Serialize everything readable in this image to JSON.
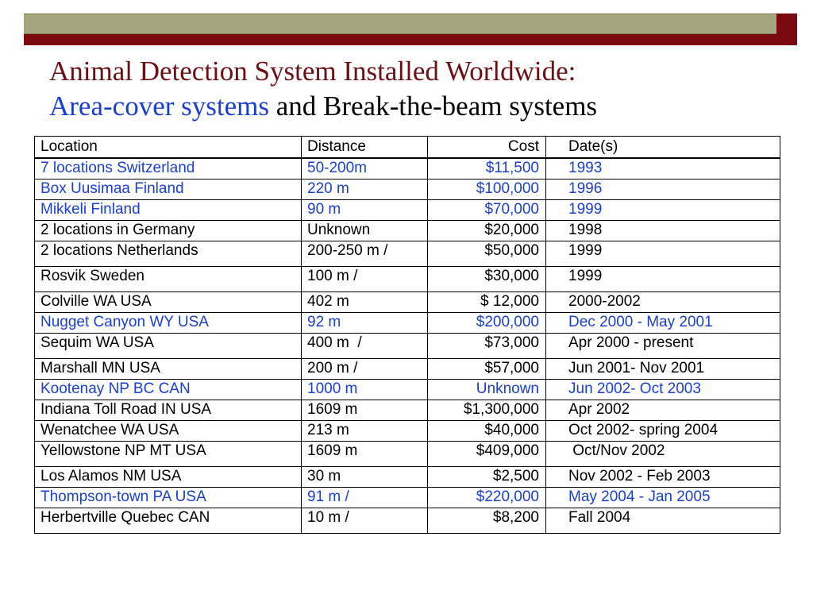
{
  "title": {
    "line1": "Animal Detection System Installed Worldwide:",
    "line2_blue": "Area-cover systems",
    "line2_black": " and Break-the-beam systems"
  },
  "colors": {
    "header_olive": "#a6a67e",
    "header_maroon": "#7a0a10",
    "title_maroon": "#6b0f15",
    "area_cover_blue": "#1a3fd0"
  },
  "table": {
    "headers": {
      "location": "Location",
      "distance": "Distance",
      "cost": "Cost",
      "dates": "Date(s)"
    },
    "rows": [
      {
        "location": "7 locations Switzerland",
        "distance": "50-200m",
        "cost": "$11,500",
        "dates": "1993",
        "color": "blue"
      },
      {
        "location": "Box Uusimaa Finland",
        "distance": "220 m",
        "cost": "$100,000",
        "dates": "1996",
        "color": "blue"
      },
      {
        "location": "Mikkeli Finland",
        "distance": "90 m",
        "cost": "$70,000",
        "dates": "1999",
        "color": "blue"
      },
      {
        "location": "2 locations in Germany",
        "distance": "Unknown",
        "cost": "$20,000",
        "dates": "1998",
        "color": "black"
      },
      {
        "location": "2 locations Netherlands",
        "distance": "200-250 m /",
        "cost": "$50,000",
        "dates": "1999",
        "color": "black",
        "tall": true
      },
      {
        "location": "Rosvik Sweden",
        "distance": "100 m /",
        "cost": "$30,000",
        "dates": "1999",
        "color": "black",
        "tall": true
      },
      {
        "location": "Colville WA USA",
        "distance": "402 m",
        "cost": "$ 12,000",
        "dates": "2000-2002",
        "color": "black"
      },
      {
        "location": "Nugget Canyon WY USA",
        "distance": "92 m",
        "cost": "$200,000",
        "dates": "Dec 2000 - May 2001",
        "color": "blue"
      },
      {
        "location": "Sequim WA USA",
        "distance": "400 m  /",
        "cost": "$73,000",
        "dates": "Apr 2000 - present",
        "color": "black",
        "tall": true
      },
      {
        "location": "Marshall MN USA",
        "distance": "200 m /",
        "cost": "$57,000",
        "dates": "Jun 2001- Nov 2001",
        "color": "black"
      },
      {
        "location": "Kootenay NP BC CAN",
        "distance": "1000 m",
        "cost": "Unknown",
        "dates": "Jun 2002- Oct 2003",
        "color": "blue"
      },
      {
        "location": "Indiana Toll Road IN USA",
        "distance": "1609 m",
        "cost": "$1,300,000",
        "dates": "Apr 2002",
        "color": "black"
      },
      {
        "location": "Wenatchee WA USA",
        "distance": "213 m",
        "cost": "$40,000",
        "dates": "Oct 2002- spring 2004",
        "color": "black"
      },
      {
        "location": "Yellowstone NP MT USA",
        "distance": "1609 m",
        "cost": "$409,000",
        "dates": " Oct/Nov 2002",
        "color": "black",
        "tall": true
      },
      {
        "location": "Los Alamos NM USA",
        "distance": "30 m",
        "cost": "$2,500",
        "dates": "Nov 2002 - Feb 2003",
        "color": "black"
      },
      {
        "location": "Thompson-town PA USA",
        "distance": "91 m /",
        "cost": "$220,000",
        "dates": "May 2004 - Jan 2005",
        "color": "blue"
      },
      {
        "location": "Herbertville Quebec CAN",
        "distance": "10 m /",
        "cost": "$8,200",
        "dates": "Fall 2004",
        "color": "black",
        "tall": true
      }
    ]
  }
}
